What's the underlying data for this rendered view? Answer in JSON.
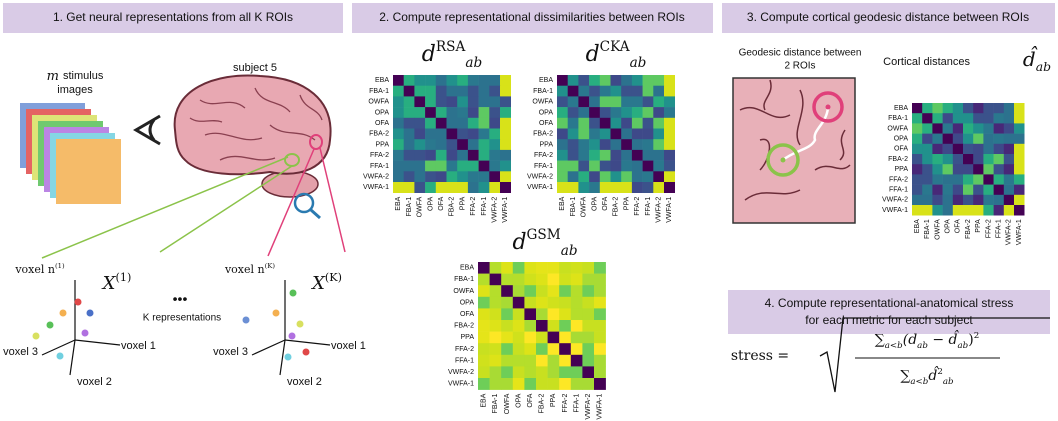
{
  "step1": {
    "title": "1. Get neural representations from all K ROIs",
    "stimulus_var": "m",
    "stimulus_text": "stimulus",
    "stimulus_text2": "images",
    "subject": "subject 5",
    "ellipsis": "•••",
    "k_representations": "K representations",
    "space1": {
      "axis_top": "voxel n",
      "axis_top_sup": "(1)",
      "matrix": "X",
      "matrix_sup": "(1)",
      "axis_1": "voxel 1",
      "axis_2": "voxel 2",
      "axis_3": "voxel 3"
    },
    "spaceK": {
      "axis_top": "voxel n",
      "axis_top_sup": "(K)",
      "matrix": "X",
      "matrix_sup": "(K)",
      "axis_1": "voxel 1",
      "axis_2": "voxel 2",
      "axis_3": "voxel 3"
    }
  },
  "step2": {
    "title": "2. Compute representational dissimilarities between ROIs",
    "rsa": {
      "base": "d",
      "sup": "RSA",
      "sub": "ab"
    },
    "cka": {
      "base": "d",
      "sup": "CKA",
      "sub": "ab"
    },
    "gsm": {
      "base": "d",
      "sup": "GSM",
      "sub": "ab"
    }
  },
  "rois": [
    "EBA",
    "FBA-1",
    "OWFA",
    "OPA",
    "OFA",
    "FBA-2",
    "PPA",
    "FFA-2",
    "FFA-1",
    "VWFA-2",
    "VWFA-1"
  ],
  "step3": {
    "title": "3. Compute cortical geodesic distance between ROIs",
    "geodesic_caption": [
      "Geodesic distance between",
      "2 ROIs"
    ],
    "cortical": "Cortical distances",
    "dhat": {
      "base": "d̂",
      "sub": "ab"
    }
  },
  "step4": {
    "title": [
      "4. Compute representational-anatomical stress",
      "for each metric for each subject"
    ],
    "formula": {
      "lhs": "stress =",
      "numerator": {
        "sum": "∑",
        "range": "a<b",
        "open": "(d",
        "d_sub": "ab",
        "minus": " − ",
        "dhat": "d̂",
        "dhat_sub": "ab",
        "close": ")",
        "pow": "2"
      },
      "denominator": {
        "sum": "∑",
        "range": "a<b",
        "dhat": "d̂",
        "sup": "2",
        "sub": "ab"
      }
    }
  }
}
